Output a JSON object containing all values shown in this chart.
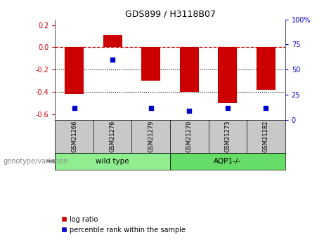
{
  "title": "GDS899 / H3118B07",
  "samples": [
    "GSM21266",
    "GSM21276",
    "GSM21279",
    "GSM21270",
    "GSM21273",
    "GSM21282"
  ],
  "log_ratios": [
    -0.42,
    0.11,
    -0.3,
    -0.4,
    -0.5,
    -0.38
  ],
  "percentile_ranks": [
    12,
    60,
    12,
    9,
    12,
    12
  ],
  "bar_color": "#cc0000",
  "dot_color": "#0000cc",
  "ylim_left": [
    -0.65,
    0.25
  ],
  "ylim_right": [
    0,
    100
  ],
  "yticks_left": [
    -0.6,
    -0.4,
    -0.2,
    0.0,
    0.2
  ],
  "yticks_right": [
    0,
    25,
    50,
    75,
    100
  ],
  "hline_y": 0.0,
  "dotted_lines": [
    -0.2,
    -0.4
  ],
  "bg_color": "#ffffff",
  "plot_bg_color": "#ffffff",
  "label_log_ratio": "log ratio",
  "label_percentile": "percentile rank within the sample",
  "genotype_label": "genotype/variation",
  "sample_bg_color": "#c8c8c8",
  "group1_color": "#90ee90",
  "group2_color": "#66dd66",
  "group1_label": "wild type",
  "group2_label": "AQP1-/-",
  "group1_indices": [
    0,
    1,
    2
  ],
  "group2_indices": [
    3,
    4,
    5
  ],
  "bar_width": 0.5
}
